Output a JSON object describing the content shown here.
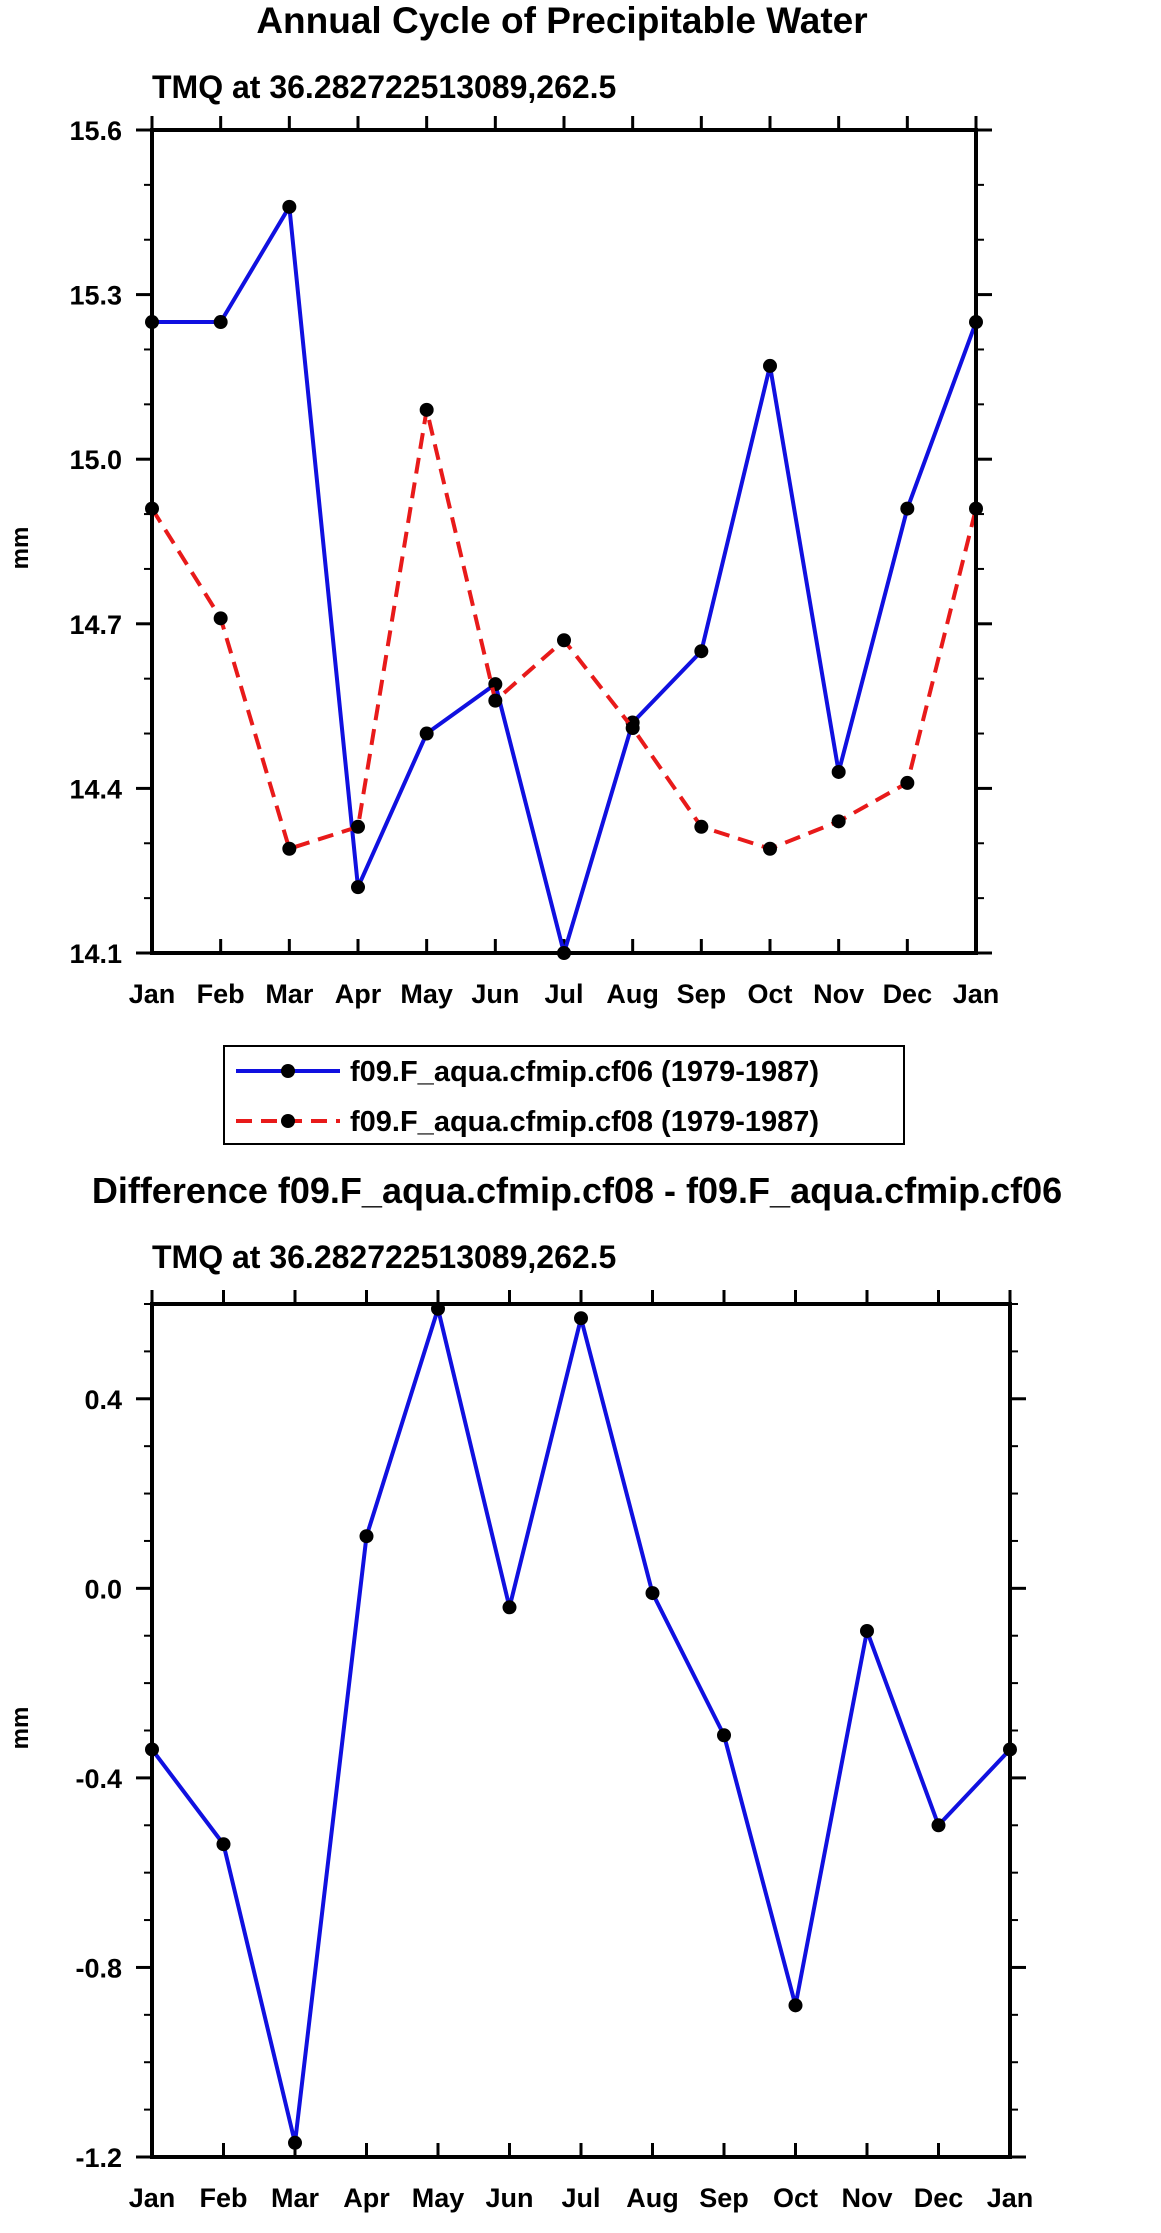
{
  "titles": {
    "main": "Annual Cycle of Precipitable Water",
    "difference": "Difference f09.F_aqua.cfmip.cf08 - f09.F_aqua.cfmip.cf06"
  },
  "legend": {
    "entries": [
      {
        "label": "f09.F_aqua.cfmip.cf06 (1979-1987)",
        "color": "#1010e0",
        "dash": "solid"
      },
      {
        "label": "f09.F_aqua.cfmip.cf08 (1979-1987)",
        "color": "#e81a1a",
        "dash": "dashed"
      }
    ]
  },
  "chart_data": [
    {
      "type": "line",
      "title": "TMQ at 36.282722513089,262.5",
      "xlabel": "",
      "ylabel": "mm",
      "categories": [
        "Jan",
        "Feb",
        "Mar",
        "Apr",
        "May",
        "Jun",
        "Jul",
        "Aug",
        "Sep",
        "Oct",
        "Nov",
        "Dec",
        "Jan"
      ],
      "ylim": [
        14.1,
        15.6
      ],
      "yticks": [
        "14.1",
        "14.4",
        "14.7",
        "15.0",
        "15.3",
        "15.6"
      ],
      "series": [
        {
          "name": "f09.F_aqua.cfmip.cf06 (1979-1987)",
          "color": "#1010e0",
          "dash": "solid",
          "values": [
            15.25,
            15.25,
            15.46,
            14.22,
            14.5,
            14.59,
            14.1,
            14.52,
            14.65,
            15.17,
            14.43,
            14.91,
            15.25
          ]
        },
        {
          "name": "f09.F_aqua.cfmip.cf08 (1979-1987)",
          "color": "#e81a1a",
          "dash": "dashed",
          "values": [
            14.91,
            14.71,
            14.29,
            14.33,
            15.09,
            14.56,
            14.67,
            14.51,
            14.33,
            14.29,
            14.34,
            14.41,
            14.91
          ]
        }
      ]
    },
    {
      "type": "line",
      "title": "TMQ at 36.282722513089,262.5",
      "xlabel": "",
      "ylabel": "mm",
      "categories": [
        "Jan",
        "Feb",
        "Mar",
        "Apr",
        "May",
        "Jun",
        "Jul",
        "Aug",
        "Sep",
        "Oct",
        "Nov",
        "Dec",
        "Jan"
      ],
      "ylim": [
        -1.2,
        0.6
      ],
      "yticks": [
        "-1.2",
        "-0.8",
        "-0.4",
        "0.0",
        "0.4"
      ],
      "series": [
        {
          "name": "f09.F_aqua.cfmip.cf08 - f09.F_aqua.cfmip.cf06",
          "color": "#1010e0",
          "dash": "solid",
          "values": [
            -0.34,
            -0.54,
            -1.17,
            0.11,
            0.59,
            -0.04,
            0.57,
            -0.01,
            -0.31,
            -0.88,
            -0.09,
            -0.5,
            -0.34
          ]
        }
      ]
    }
  ]
}
